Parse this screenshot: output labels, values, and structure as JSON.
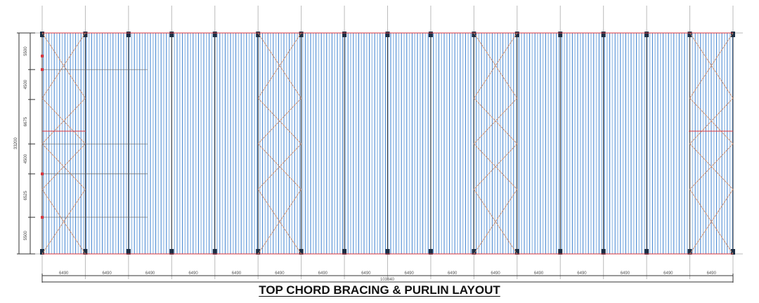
{
  "title": "TOP CHORD BRACING & PURLIN LAYOUT",
  "bay_dimensions": [
    "6490",
    "6490",
    "6490",
    "6490",
    "6490",
    "6490",
    "6490",
    "6490",
    "6490",
    "6490",
    "6490",
    "6490",
    "6490",
    "6490",
    "6490",
    "6490"
  ],
  "total_length": "103840",
  "row_dimensions": [
    "5500",
    "4500",
    "6675",
    "4500",
    "6525",
    "5500"
  ],
  "total_width": "33200",
  "braced_bays": [
    1,
    6,
    11,
    16
  ],
  "colors": {
    "purlin": "#3a7fd0",
    "purlin_light": "#a9c8ea",
    "rafter": "#333333",
    "bracing": "#c98a6a",
    "edge": "#d9363e",
    "dimension": "#333333"
  }
}
